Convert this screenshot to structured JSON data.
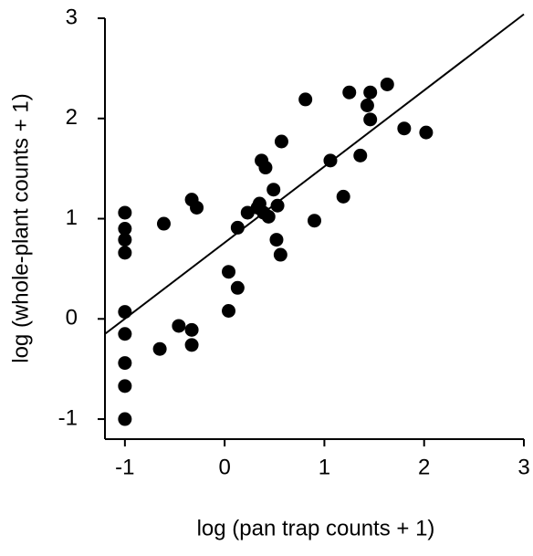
{
  "chart_data": {
    "type": "scatter",
    "x_label": "log (pan trap counts + 1)",
    "y_label": "log (whole-plant counts + 1)",
    "xlim": [
      -1.2,
      3
    ],
    "ylim": [
      -1.2,
      3
    ],
    "xticks": [
      -1,
      0,
      1,
      2,
      3
    ],
    "yticks": [
      -1,
      0,
      1,
      2,
      3
    ],
    "color": "#000000",
    "series": [
      {
        "x": [
          -1,
          -1,
          -1,
          -1,
          -1,
          -1,
          -1,
          -1,
          -1,
          -0.61,
          -0.65,
          -0.46,
          -0.33,
          -0.33,
          -0.33,
          -0.28,
          0.04,
          0.04,
          0.13,
          0.13,
          0.23,
          0.33,
          0.35,
          0.37,
          0.41,
          0.39,
          0.44,
          0.49,
          0.53,
          0.52,
          0.56,
          0.57,
          0.81,
          0.9,
          1.06,
          1.19,
          1.25,
          1.36,
          1.43,
          1.46,
          1.46,
          1.63,
          1.8,
          2.02
        ],
        "values": [
          1.06,
          0.9,
          0.79,
          0.66,
          0.07,
          -0.15,
          -0.44,
          -0.67,
          -1.0,
          0.95,
          -0.3,
          -0.07,
          -0.11,
          -0.26,
          1.19,
          1.11,
          0.47,
          0.08,
          0.31,
          0.91,
          1.06,
          1.11,
          1.15,
          1.58,
          1.51,
          1.06,
          1.02,
          1.29,
          1.13,
          0.79,
          0.64,
          1.77,
          2.19,
          0.98,
          1.58,
          1.22,
          2.26,
          1.63,
          2.13,
          2.26,
          1.99,
          2.34,
          1.9,
          1.86
        ]
      }
    ],
    "fit_line": {
      "x": [
        -1.2,
        3
      ],
      "values": [
        -0.15,
        3.04
      ]
    }
  }
}
